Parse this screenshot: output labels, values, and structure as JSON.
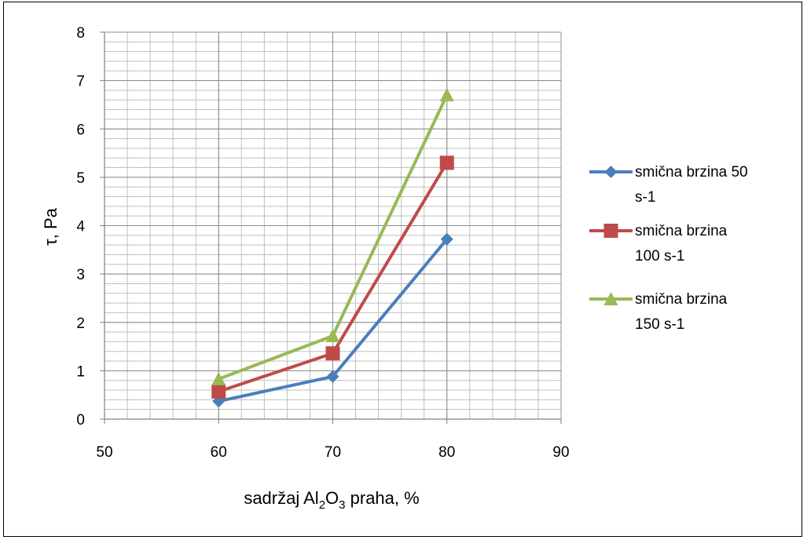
{
  "chart_data": {
    "type": "line",
    "xlabel": {
      "prefix": "sadržaj Al",
      "sub1": "2",
      "mid": "O",
      "sub2": "3",
      "suffix": " praha, %"
    },
    "ylabel": "τ, Pa",
    "xlim": [
      50,
      90
    ],
    "ylim": [
      0,
      8
    ],
    "xticks": [
      50,
      60,
      70,
      80,
      90
    ],
    "yticks": [
      0,
      1,
      2,
      3,
      4,
      5,
      6,
      7,
      8
    ],
    "x_minor_step": 2,
    "y_minor_step": 0.2,
    "grid": true,
    "legend_position": "right",
    "series": [
      {
        "name": "smična brzina 50 s-1",
        "legend_lines": [
          "smična brzina 50",
          "s-1"
        ],
        "color": "#4A7EBB",
        "marker": "diamond",
        "x": [
          60,
          70,
          80
        ],
        "y": [
          0.37,
          0.88,
          3.72
        ]
      },
      {
        "name": "smična brzina 100 s-1",
        "legend_lines": [
          "smična brzina",
          "100 s-1"
        ],
        "color": "#BE4B48",
        "marker": "square",
        "x": [
          60,
          70,
          80
        ],
        "y": [
          0.57,
          1.36,
          5.3
        ]
      },
      {
        "name": "smična brzina 150 s-1",
        "legend_lines": [
          "smična brzina",
          "150 s-1"
        ],
        "color": "#98B954",
        "marker": "triangle",
        "x": [
          60,
          70,
          80
        ],
        "y": [
          0.83,
          1.72,
          6.7
        ]
      }
    ]
  }
}
